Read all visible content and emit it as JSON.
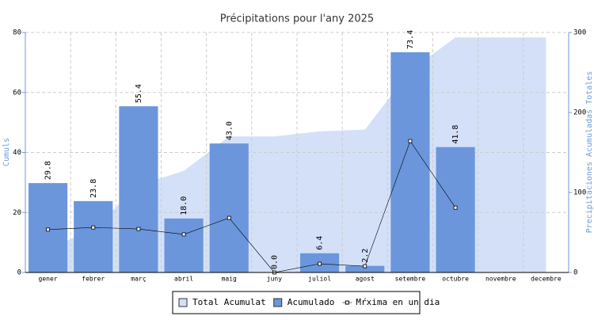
{
  "chart_data": {
    "type": "bar",
    "title": "Précipitations pour l'any 2025",
    "y_label": "Cumuls",
    "y2_label": "Precipitaciones Acumuladas Totales",
    "categories": [
      "gener",
      "febrer",
      "març",
      "abril",
      "maig",
      "juny",
      "juliol",
      "agost",
      "setembre",
      "octubre",
      "novembre",
      "decembre"
    ],
    "series": [
      {
        "name": "Total Acumulat",
        "type": "area",
        "axis": "y2",
        "color": "#d3e0f8",
        "values": [
          29.8,
          53.6,
          109,
          127,
          170,
          170,
          176.4,
          178.6,
          252,
          293.8,
          293.8,
          293.8
        ]
      },
      {
        "name": "Acumulado",
        "type": "bar",
        "color": "#6b96dc",
        "values": [
          29.8,
          23.8,
          55.4,
          18.0,
          43.0,
          0.0,
          6.4,
          2.2,
          73.4,
          41.8,
          null,
          null
        ],
        "value_labels": [
          "29.8",
          "23.8",
          "55.4",
          "18.0",
          "43.0",
          "0.0",
          "6.4",
          "2.2",
          "73.4",
          "41.8",
          null,
          null
        ]
      },
      {
        "name": "Mŕxima en un dia",
        "type": "line",
        "color": "#000000",
        "values": [
          14.3,
          15.0,
          14.5,
          12.7,
          18.2,
          0,
          2.9,
          2.1,
          43.8,
          21.6,
          null,
          null
        ]
      }
    ],
    "ylim": [
      0,
      80
    ],
    "yticks": [
      0,
      20,
      40,
      60,
      80
    ],
    "y2lim": [
      0,
      300
    ],
    "y2ticks": [
      0,
      100,
      200,
      300
    ],
    "grid": true,
    "legend": "bottom"
  }
}
